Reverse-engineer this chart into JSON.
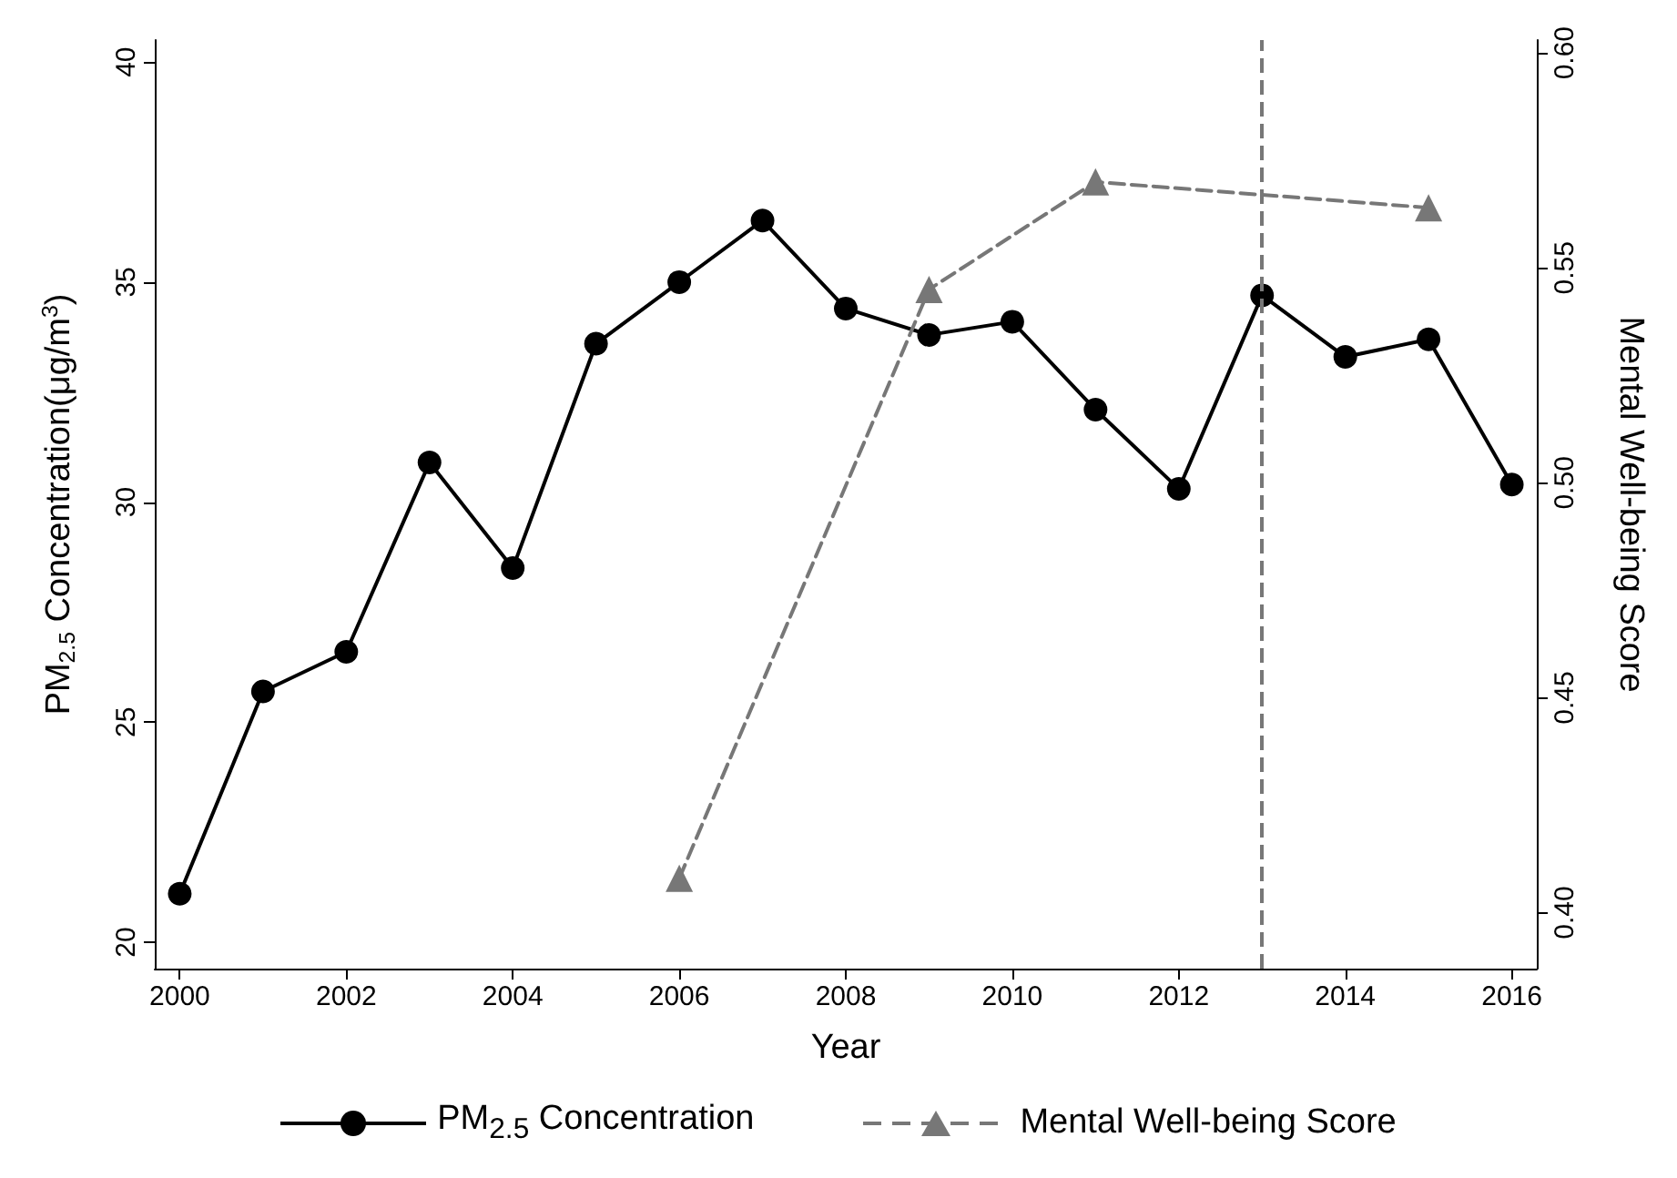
{
  "chart_data": {
    "type": "line",
    "xlabel": "Year",
    "ylabel": "PM$_{2.5}$ Concentration(μg/m$^{3}$)",
    "y2label": "Mental Well-being Score",
    "xlim": [
      1999.7,
      2016.3
    ],
    "xticks": [
      2000,
      2002,
      2004,
      2006,
      2008,
      2010,
      2012,
      2014,
      2016
    ],
    "ylim": [
      19.4,
      40.5
    ],
    "yticks": [
      20,
      25,
      30,
      35,
      40
    ],
    "y2lim": [
      0.387,
      0.603
    ],
    "y2ticks": [
      {
        "value": 0.4,
        "label": "0.40"
      },
      {
        "value": 0.45,
        "label": "0.45"
      },
      {
        "value": 0.5,
        "label": "0.50"
      },
      {
        "value": 0.55,
        "label": "0.55"
      },
      {
        "value": 0.6,
        "label": "0.60"
      }
    ],
    "series": [
      {
        "name": "PM$_{2.5}$ Concentration",
        "color": "#000000",
        "marker": "circle",
        "line_style": "solid",
        "x": [
          2000,
          2001,
          2002,
          2003,
          2004,
          2005,
          2006,
          2007,
          2008,
          2009,
          2010,
          2011,
          2012,
          2013,
          2014,
          2015,
          2016
        ],
        "values": [
          21.1,
          25.7,
          26.6,
          30.9,
          28.5,
          33.6,
          35.0,
          36.4,
          34.4,
          33.8,
          34.1,
          32.1,
          30.3,
          34.7,
          33.3,
          33.7,
          30.4
        ]
      },
      {
        "name": "Mental Well-being Score",
        "color": "#777777",
        "marker": "triangle",
        "line_style": "dashed",
        "axis": "y2",
        "x": [
          2006,
          2009,
          2011,
          2015
        ],
        "values": [
          0.408,
          0.545,
          0.57,
          0.564
        ]
      }
    ],
    "ref_lines": [
      {
        "axis": "x",
        "value": 2013,
        "color": "#777777",
        "line_style": "dashed"
      }
    ],
    "grid": false,
    "legend": "bottom"
  }
}
